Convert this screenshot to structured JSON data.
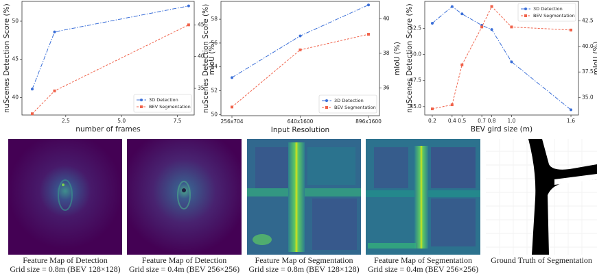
{
  "chart_data": [
    {
      "type": "line",
      "xlabel": "number of frames",
      "ylabel": "nuScenes Detection Score (%)",
      "y2label": "mIoU (%)",
      "x": [
        1,
        2,
        8
      ],
      "xlim": [
        0.54,
        8.25
      ],
      "xticks": [
        {
          "value": 2.5,
          "label": "2.5"
        },
        {
          "value": 5,
          "label": "5.0"
        },
        {
          "value": 7.5,
          "label": "7.5"
        }
      ],
      "ylim": [
        37.7,
        52.6
      ],
      "yticks": [
        40,
        45,
        50
      ],
      "y2lim": [
        30.8,
        48.7
      ],
      "y2ticks": [
        35,
        40,
        45
      ],
      "legend": "lower right",
      "series": [
        {
          "name": "3D Detection",
          "color": "#3b6fd8",
          "values": [
            41.1,
            48.6,
            52.0
          ]
        },
        {
          "name": "BEV Segmentation",
          "color": "#f0624a",
          "axis": "y2",
          "values": [
            31.0,
            34.6,
            45.0
          ]
        }
      ]
    },
    {
      "type": "line",
      "xlabel": "Input Resolution",
      "ylabel": "nuScenes Detection Score (%)",
      "y2label": "mIoU (%)",
      "categories": [
        "256x704",
        "640x1600",
        "896x1600"
      ],
      "ylim": [
        49.9,
        59.5
      ],
      "yticks": [
        50,
        52,
        54,
        56,
        58
      ],
      "y2lim": [
        34.4,
        41.0
      ],
      "y2ticks": [
        36,
        38,
        40
      ],
      "legend": "lower right",
      "series": [
        {
          "name": "3D Detection",
          "color": "#3b6fd8",
          "values": [
            53.1,
            56.6,
            59.2
          ]
        },
        {
          "name": "BEV Segmentation",
          "color": "#f0624a",
          "axis": "y2",
          "values": [
            34.9,
            38.2,
            39.1
          ]
        }
      ]
    },
    {
      "type": "line",
      "xlabel": "BEV gird size (m)",
      "ylabel": "nuScenes Detection Score (%)",
      "y2label": "mIoU (%)",
      "x": [
        0.2,
        0.4,
        0.5,
        0.7,
        0.8,
        1.0,
        1.6
      ],
      "xlim": [
        0.124,
        1.676
      ],
      "xticks": [
        0.2,
        0.4,
        0.5,
        0.7,
        0.8,
        {
          "value": 1.0,
          "label": "1.0"
        },
        1.6
      ],
      "ylim": [
        44.2,
        55.1
      ],
      "yticks": [
        {
          "value": 45,
          "label": "45.0"
        },
        {
          "value": 47.5,
          "label": "47.5"
        },
        {
          "value": 50,
          "label": "50.0"
        },
        {
          "value": 52.5,
          "label": "52.5"
        }
      ],
      "y2lim": [
        33.3,
        44.4
      ],
      "y2ticks": [
        {
          "value": 35,
          "label": "35.0"
        },
        {
          "value": 37.5,
          "label": "37.5"
        },
        {
          "value": 40,
          "label": "40.0"
        },
        {
          "value": 42.5,
          "label": "42.5"
        }
      ],
      "legend": "upper right",
      "series": [
        {
          "name": "3D Detection",
          "color": "#3b6fd8",
          "values": [
            53.0,
            54.6,
            53.9,
            52.8,
            52.4,
            49.3,
            44.7
          ]
        },
        {
          "name": "BEV Segmentation",
          "color": "#f0624a",
          "axis": "y2",
          "values": [
            33.9,
            34.3,
            38.2,
            41.9,
            43.9,
            41.9,
            41.6
          ]
        }
      ]
    }
  ],
  "panels": [
    {
      "caption": [
        "Feature Map of Detection",
        "Grid size = 0.8m (BEV 128×128)"
      ]
    },
    {
      "caption": [
        "Feature Map of Detection",
        "Grid size = 0.4m (BEV 256×256)"
      ]
    },
    {
      "caption": [
        "Feature Map of Segmentation",
        "Grid size = 0.8m (BEV 128×128)"
      ]
    },
    {
      "caption": [
        "Feature Map of Segmentation",
        "Grid size = 0.4m (BEV 256×256)"
      ]
    },
    {
      "caption": [
        "Ground Truth of Segmentation"
      ]
    }
  ]
}
